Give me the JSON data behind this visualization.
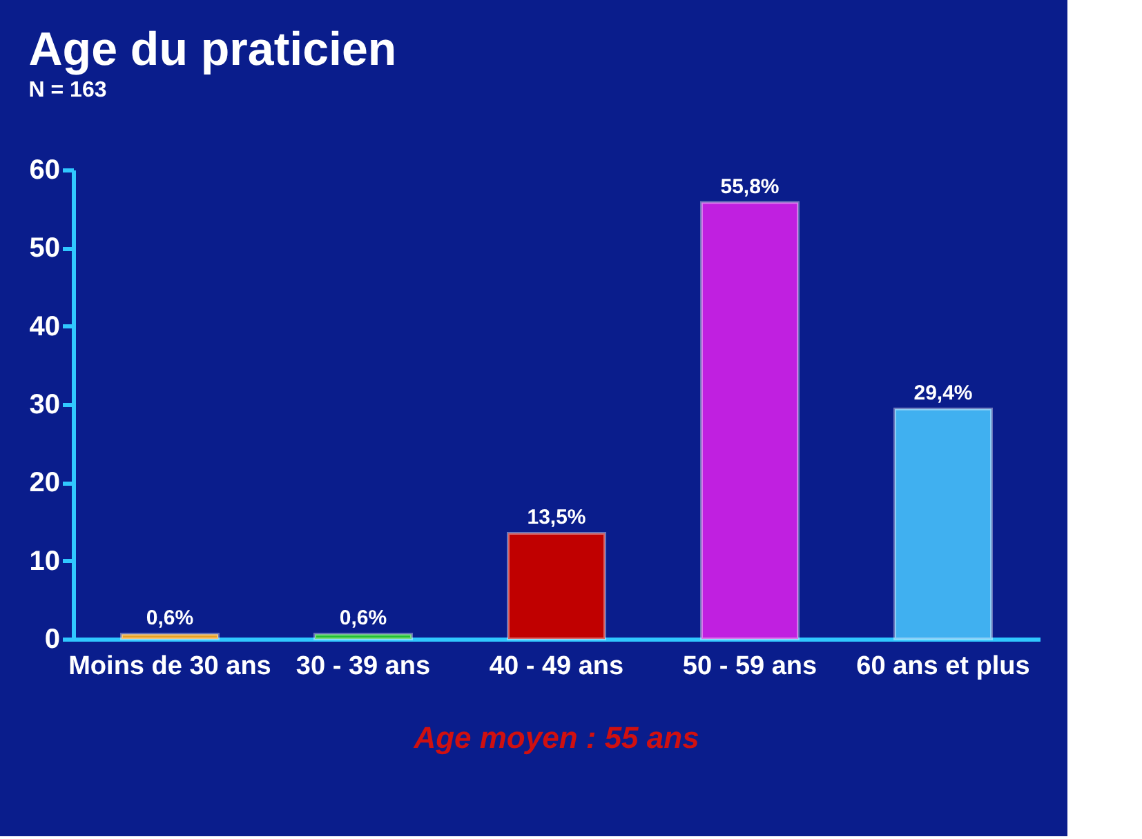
{
  "chart_data": {
    "type": "bar",
    "title": "Age du praticien",
    "subtitle": "N = 163",
    "categories": [
      "Moins de 30 ans",
      "30 - 39 ans",
      "40 - 49 ans",
      "50 - 59 ans",
      "60 ans et plus"
    ],
    "values": [
      0.6,
      0.6,
      13.5,
      55.8,
      29.4
    ],
    "colors": [
      "#e8a020",
      "#20c030",
      "#c00000",
      "#c020e0",
      "#40b0f0"
    ],
    "value_labels": [
      "0,6%",
      "0,6%",
      "13,5%",
      "55,8%",
      "29,4%"
    ],
    "ylim": [
      0,
      60
    ],
    "yticks": [
      0,
      10,
      20,
      30,
      40,
      50,
      60
    ],
    "grid": false,
    "annotations": [
      "Age moyen : 55 ans"
    ]
  }
}
